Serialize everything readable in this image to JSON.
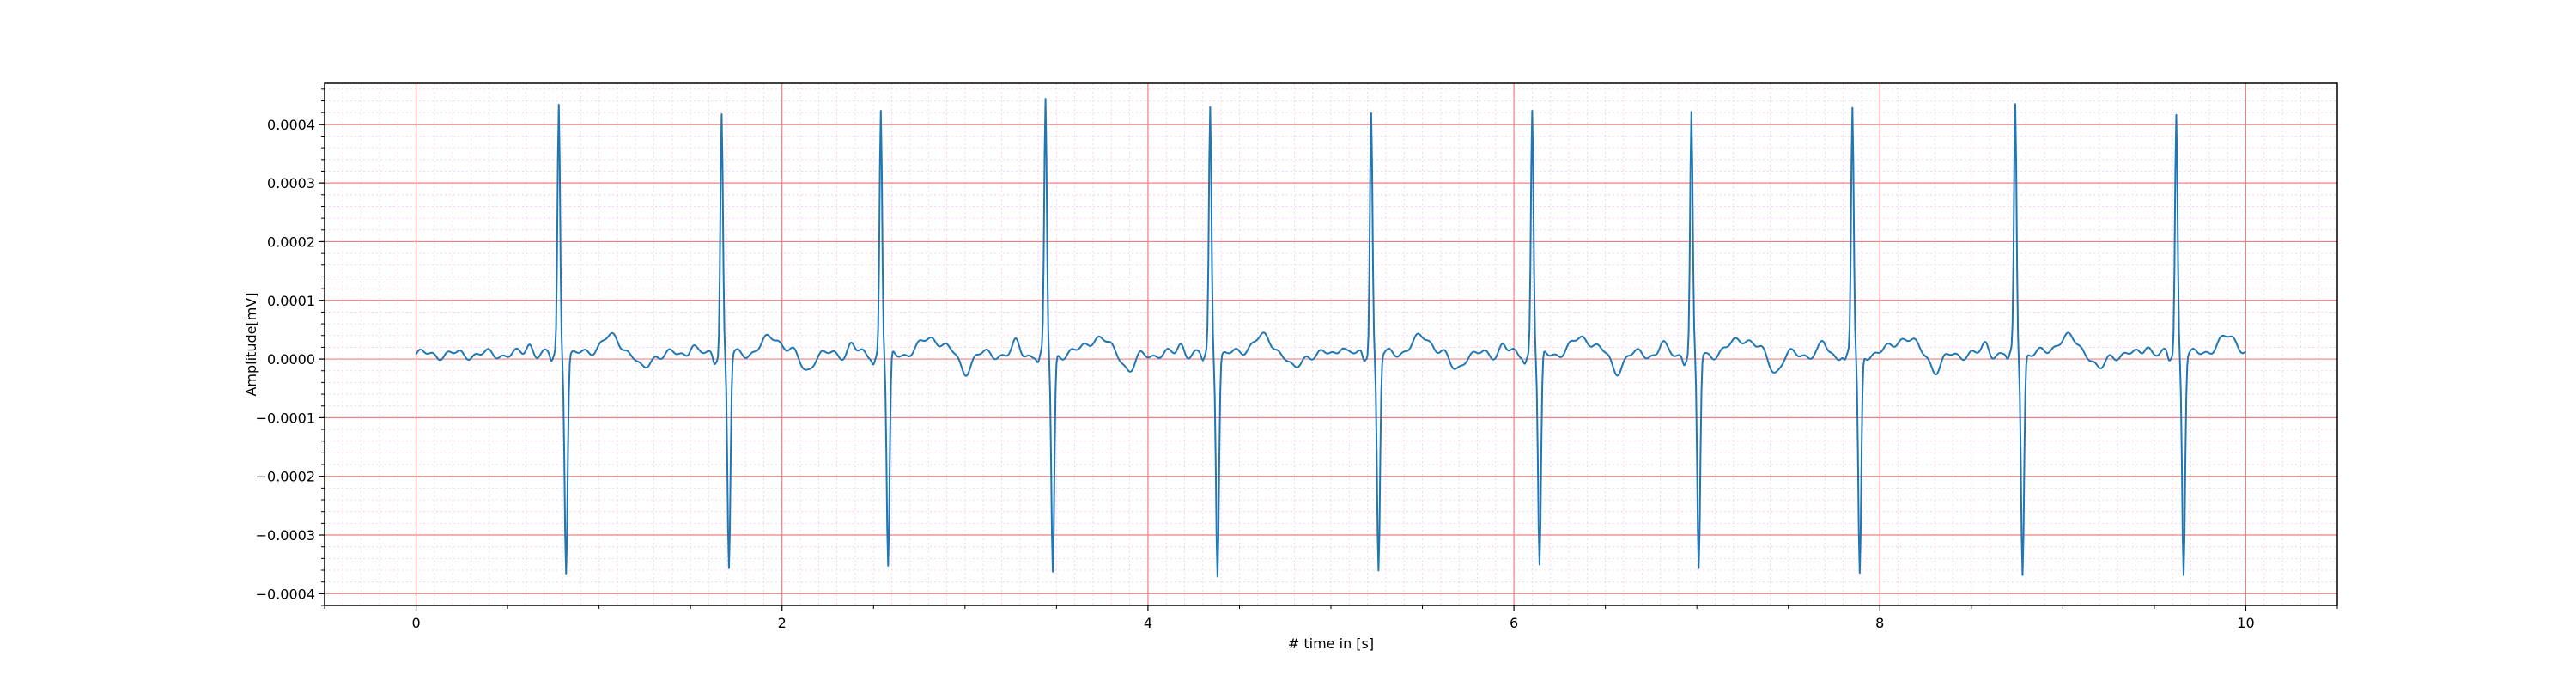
{
  "chart_data": {
    "type": "line",
    "title": "",
    "xlabel": "# time in [s]",
    "ylabel": "Amplitude[mV]",
    "xlim": [
      -0.5,
      10.5
    ],
    "ylim": [
      -0.00042,
      0.00047
    ],
    "xticks": [
      0,
      2,
      4,
      6,
      8,
      10
    ],
    "xtick_labels": [
      "0",
      "2",
      "4",
      "6",
      "8",
      "10"
    ],
    "yticks": [
      -0.0004,
      -0.0003,
      -0.0002,
      -0.0001,
      0,
      0.0001,
      0.0002,
      0.0003,
      0.0004
    ],
    "ytick_labels": [
      "−0.0004",
      "−0.0003",
      "−0.0002",
      "−0.0001",
      "0.0000",
      "0.0001",
      "0.0002",
      "0.0003",
      "0.0004"
    ],
    "grid": true,
    "grid_major_color": "#f08080",
    "grid_minor_color": "#f5c8ee",
    "line_color": "#1f77b4",
    "sample_rate_hz": 200,
    "duration_s": 10,
    "beat_times_s": [
      0.78,
      1.67,
      2.54,
      3.44,
      4.34,
      5.22,
      6.1,
      6.97,
      7.85,
      8.74,
      9.62
    ],
    "beat_r_peaks": [
      0.000425,
      0.000413,
      0.000418,
      0.000428,
      0.00042,
      0.000418,
      0.00042,
      0.00041,
      0.000418,
      0.000424,
      0.000411
    ],
    "beat_s_troughs": [
      -0.000365,
      -0.000365,
      -0.000368,
      -0.00037,
      -0.00037,
      -0.000368,
      -0.000366,
      -0.000368,
      -0.000378,
      -0.00037,
      -0.00037
    ],
    "series": [
      {
        "values_desc": ""
      }
    ]
  }
}
